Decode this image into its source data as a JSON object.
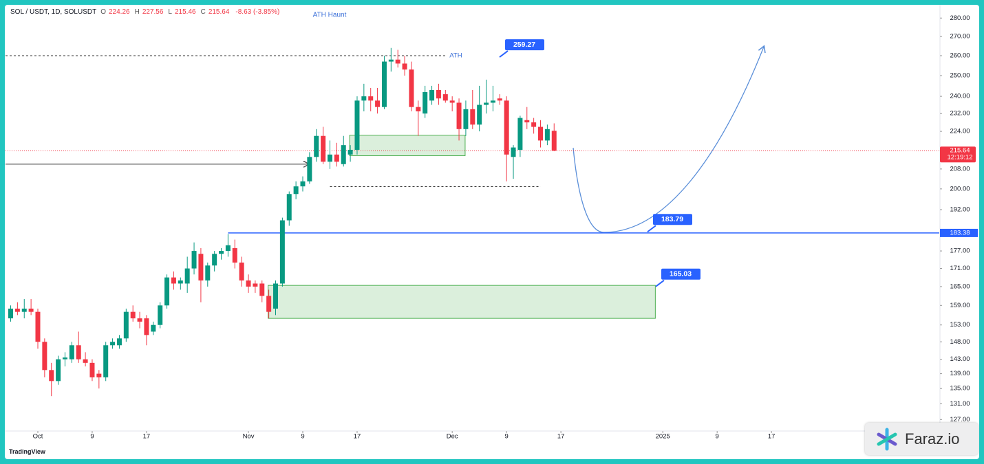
{
  "chart_data": {
    "type": "candlestick",
    "log_scale": true,
    "grid": false,
    "up_color": "#089981",
    "down_color": "#f23645",
    "legend": {
      "symbol": "SOL / USDT, 1D, SOLUSDT",
      "items": [
        {
          "key": "O",
          "value": "224.26"
        },
        {
          "key": "H",
          "value": "227.56"
        },
        {
          "key": "L",
          "value": "215.46"
        },
        {
          "key": "C",
          "value": "215.64"
        }
      ],
      "change": "-8.63 (-3.85%)"
    },
    "annotation_title": "ATH Haunt",
    "ath_label": "ATH",
    "ath_line": 260,
    "callouts": [
      259.27,
      183.79,
      165.03
    ],
    "support_line": 183.38,
    "last_price": 215.64,
    "countdown": "12:19:12",
    "arrow_level": 210,
    "dashed_low": {
      "value": 200.9,
      "x": [
        43,
        74
      ]
    },
    "zones": [
      {
        "x": [
          45.9,
          62.9
        ],
        "y": [
          213.5,
          222.3
        ]
      },
      {
        "x": [
          33.9,
          90.9
        ],
        "y": [
          155,
          165.4
        ]
      }
    ],
    "xlim": [
      -4.76,
      132.7
    ],
    "ylim": [
      124.5,
      287
    ],
    "xticks": [
      {
        "value": 0,
        "label": "Oct"
      },
      {
        "value": 8,
        "label": "9"
      },
      {
        "value": 16,
        "label": "17"
      },
      {
        "value": 31,
        "label": "Nov"
      },
      {
        "value": 39,
        "label": "9"
      },
      {
        "value": 47,
        "label": "17"
      },
      {
        "value": 61,
        "label": "Dec"
      },
      {
        "value": 69,
        "label": "9"
      },
      {
        "value": 77,
        "label": "17"
      },
      {
        "value": 92,
        "label": "2025"
      },
      {
        "value": 100,
        "label": "9"
      },
      {
        "value": 108,
        "label": "17"
      }
    ],
    "yticks": [
      {
        "value": 280,
        "label": "280.00"
      },
      {
        "value": 270,
        "label": "270.00"
      },
      {
        "value": 260,
        "label": "260.00"
      },
      {
        "value": 250,
        "label": "250.00"
      },
      {
        "value": 240,
        "label": "240.00"
      },
      {
        "value": 232,
        "label": "232.00"
      },
      {
        "value": 224,
        "label": "224.00"
      },
      {
        "value": 208,
        "label": "208.00"
      },
      {
        "value": 200,
        "label": "200.00"
      },
      {
        "value": 192,
        "label": "192.00"
      },
      {
        "value": 177,
        "label": "177.00"
      },
      {
        "value": 171,
        "label": "171.00"
      },
      {
        "value": 165,
        "label": "165.00"
      },
      {
        "value": 159,
        "label": "159.00"
      },
      {
        "value": 153,
        "label": "153.00"
      },
      {
        "value": 148,
        "label": "148.00"
      },
      {
        "value": 143,
        "label": "143.00"
      },
      {
        "value": 139,
        "label": "139.00"
      },
      {
        "value": 135,
        "label": "135.00"
      },
      {
        "value": 131,
        "label": "131.00"
      },
      {
        "value": 127,
        "label": "127.00"
      }
    ],
    "x": [
      -4,
      -3,
      -2,
      -1,
      0,
      1,
      2,
      3,
      4,
      5,
      6,
      7,
      8,
      9,
      10,
      11,
      12,
      13,
      14,
      15,
      16,
      17,
      18,
      19,
      20,
      21,
      22,
      23,
      24,
      25,
      26,
      27,
      28,
      29,
      30,
      31,
      32,
      33,
      34,
      35,
      36,
      37,
      38,
      39,
      40,
      41,
      42,
      43,
      44,
      45,
      46,
      47,
      48,
      49,
      50,
      51,
      52,
      53,
      54,
      55,
      56,
      57,
      58,
      59,
      60,
      61,
      62,
      63,
      64,
      65,
      66,
      67,
      68,
      69,
      70,
      71,
      72,
      73,
      74,
      75,
      76
    ],
    "candles": [
      [
        155,
        159,
        154,
        158
      ],
      [
        158,
        160,
        156,
        157
      ],
      [
        157,
        161,
        155,
        158
      ],
      [
        158,
        161,
        156,
        157
      ],
      [
        157,
        158,
        146,
        148
      ],
      [
        148,
        149,
        138,
        140
      ],
      [
        140,
        142,
        133,
        137
      ],
      [
        137,
        144,
        136,
        143
      ],
      [
        143,
        145,
        141,
        143.5
      ],
      [
        143,
        148,
        142,
        147
      ],
      [
        147,
        151,
        142,
        143
      ],
      [
        143,
        145,
        141,
        142
      ],
      [
        142,
        143,
        137,
        138
      ],
      [
        139,
        140,
        135,
        138
      ],
      [
        138,
        148,
        137,
        147
      ],
      [
        147,
        149,
        146,
        148
      ],
      [
        147,
        150,
        146,
        149
      ],
      [
        149,
        158,
        148,
        157
      ],
      [
        157,
        159,
        154,
        155
      ],
      [
        155,
        157,
        152,
        154
      ],
      [
        155,
        156,
        147,
        150
      ],
      [
        151,
        154,
        150,
        153
      ],
      [
        153,
        160,
        152,
        159
      ],
      [
        159,
        169,
        158,
        168
      ],
      [
        168,
        170,
        164,
        166
      ],
      [
        166,
        168,
        164,
        167
      ],
      [
        166,
        175,
        163,
        171
      ],
      [
        171,
        180,
        169,
        177
      ],
      [
        176,
        178,
        160,
        167
      ],
      [
        167,
        173,
        165,
        172
      ],
      [
        172,
        177,
        170,
        176
      ],
      [
        176,
        178,
        174,
        177
      ],
      [
        177,
        183,
        175,
        179
      ],
      [
        178,
        181,
        171,
        173
      ],
      [
        173,
        175,
        165,
        167
      ],
      [
        167,
        169,
        163,
        165
      ],
      [
        166,
        167,
        163,
        165
      ],
      [
        166,
        167,
        160,
        162
      ],
      [
        162,
        164,
        155,
        157
      ],
      [
        158,
        167,
        156,
        166
      ],
      [
        166,
        189,
        165,
        188
      ],
      [
        188,
        199,
        186,
        198
      ],
      [
        198,
        203,
        196,
        201
      ],
      [
        201,
        205,
        199,
        203
      ],
      [
        203,
        215,
        202,
        213
      ],
      [
        213,
        225,
        211,
        222
      ],
      [
        222,
        226,
        210,
        211
      ],
      [
        211,
        220,
        208,
        214
      ],
      [
        214,
        219,
        209,
        211
      ],
      [
        210,
        222,
        209,
        218
      ],
      [
        214,
        218,
        211,
        216
      ],
      [
        216,
        240,
        214,
        238
      ],
      [
        238,
        246,
        233,
        240
      ],
      [
        240,
        244,
        233,
        238
      ],
      [
        238,
        244,
        232,
        235
      ],
      [
        235,
        260,
        234,
        257
      ],
      [
        257,
        264,
        252,
        258
      ],
      [
        258,
        263,
        254,
        256
      ],
      [
        256,
        260,
        250,
        253
      ],
      [
        253,
        257,
        233,
        235
      ],
      [
        235,
        238,
        222,
        233
      ],
      [
        232,
        245,
        230,
        242
      ],
      [
        238,
        245,
        236,
        243
      ],
      [
        243,
        246,
        236,
        239
      ],
      [
        241,
        243,
        237,
        238
      ],
      [
        238,
        240,
        233,
        237
      ],
      [
        237,
        239,
        220,
        225
      ],
      [
        225,
        238,
        222,
        234
      ],
      [
        234,
        243,
        225,
        227
      ],
      [
        227,
        245,
        224,
        236
      ],
      [
        236,
        248,
        232,
        237
      ],
      [
        237,
        245,
        233,
        238
      ],
      [
        239,
        241,
        236,
        238
      ],
      [
        238,
        240,
        203,
        214
      ],
      [
        213,
        218,
        204,
        217
      ],
      [
        216,
        231,
        213,
        230
      ],
      [
        229,
        235,
        225,
        228
      ],
      [
        228,
        230,
        223,
        226
      ],
      [
        226,
        229,
        217,
        220
      ],
      [
        220,
        227,
        218,
        225
      ],
      [
        224.26,
        227.56,
        215.46,
        215.64
      ]
    ]
  },
  "watermark": "Faraz.io",
  "platform": "TradingView"
}
